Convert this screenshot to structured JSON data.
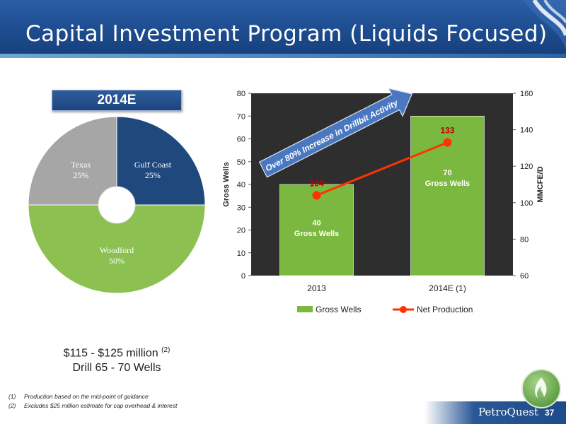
{
  "title": "Capital Investment Program (Liquids Focused)",
  "pie_box_label": "2014E",
  "summary": {
    "line1": "$115 - $125 million",
    "line1_sup": "(2)",
    "line2": "Drill 65 - 70 Wells"
  },
  "footnotes": [
    {
      "num": "(1)",
      "text": "Production based on the mid-point of guidance"
    },
    {
      "num": "(2)",
      "text": "Excludes $25 million estimate for cap overhead & interest"
    }
  ],
  "brand": "PetroQuest",
  "page_number": "37",
  "colors": {
    "header": "#1d4c8f",
    "gulf_coast": "#1f497d",
    "woodford": "#8cc152",
    "texas": "#a6a6a6",
    "plot_bg": "#2e2e2e",
    "bar": "#7bb83f",
    "line": "#ff3300",
    "line_label": "#c00000",
    "arrow": "#4a78c0"
  },
  "chart_data": [
    {
      "type": "pie",
      "title": "2014E",
      "slices": [
        {
          "label": "Gulf Coast",
          "value": 25,
          "pct_label": "25%"
        },
        {
          "label": "Woodford",
          "value": 50,
          "pct_label": "50%"
        },
        {
          "label": "Texas",
          "value": 25,
          "pct_label": "25%"
        }
      ]
    },
    {
      "type": "bar",
      "categories": [
        "2013",
        "2014E (1)"
      ],
      "series": [
        {
          "name": "Gross Wells",
          "type": "bar",
          "axis": "left",
          "values": [
            40,
            70
          ],
          "value_labels": [
            "40",
            "70"
          ],
          "sub_labels": [
            "Gross  Wells",
            "Gross Wells"
          ]
        },
        {
          "name": "Net Production",
          "type": "line",
          "axis": "right",
          "values": [
            104,
            133
          ],
          "value_labels": [
            "104",
            "133"
          ]
        }
      ],
      "ylabel": "Gross Wells",
      "y2label": "MMCFE/D",
      "ylim": [
        0,
        80
      ],
      "y2lim": [
        60,
        160
      ],
      "yticks": [
        "0",
        "10",
        "20",
        "30",
        "40",
        "50",
        "60",
        "70",
        "80"
      ],
      "y2ticks": [
        "60",
        "80",
        "100",
        "120",
        "140",
        "160"
      ],
      "annotation": "Over 80% Increase in Drillbit Activity",
      "legend_position": "bottom"
    }
  ]
}
